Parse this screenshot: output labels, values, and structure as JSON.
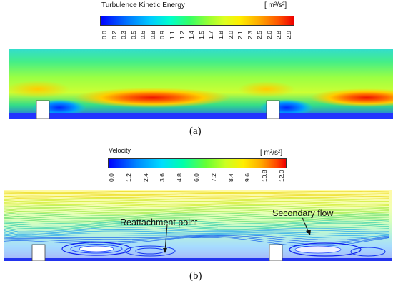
{
  "panel_a": {
    "colorbar_title": "Turbulence Kinetic Energy",
    "colorbar_unit": "[ m²/s²]",
    "ticks": [
      "0.0",
      "0.2",
      "0.3",
      "0.5",
      "0.6",
      "0.8",
      "0.9",
      "1.1",
      "1.2",
      "1.4",
      "1.5",
      "1.7",
      "1.8",
      "2.0",
      "2.1",
      "2.3",
      "2.5",
      "2.6",
      "2.8",
      "2.9"
    ],
    "label": "(a)"
  },
  "panel_b": {
    "colorbar_title": "Velocity",
    "colorbar_unit": "[ m²/s²]",
    "ticks": [
      "0.0",
      "1.2",
      "2.4",
      "3.6",
      "4.8",
      "6.0",
      "7.2",
      "8.4",
      "9.6",
      "10.8",
      "12.0"
    ],
    "annotation_reattachment": "Reattachment point",
    "annotation_secondary": "Secondary flow",
    "label": "(b)"
  },
  "colors": {
    "jet_low": "#1a1aff",
    "jet_mid": "#33dd55",
    "jet_high": "#ee2200"
  }
}
